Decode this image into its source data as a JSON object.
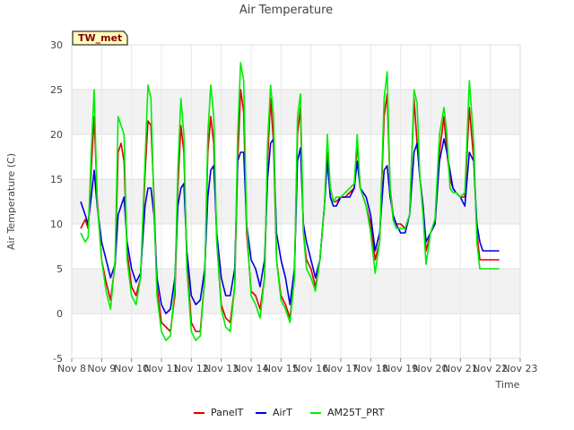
{
  "tag": "TW_met",
  "chart_data": {
    "type": "line",
    "title": "Air Temperature",
    "xlabel": "Time",
    "ylabel": "Air Temperature (C)",
    "ylim": [
      -5,
      30
    ],
    "yticks": [
      -5,
      0,
      5,
      10,
      15,
      20,
      25,
      30
    ],
    "xticks": [
      "Nov 8",
      "Nov 9",
      "Nov 10",
      "Nov 11",
      "Nov 12",
      "Nov 13",
      "Nov 14",
      "Nov 15",
      "Nov 16",
      "Nov 17",
      "Nov 18",
      "Nov 19",
      "Nov 20",
      "Nov 21",
      "Nov 22",
      "Nov 23"
    ],
    "xlim_day": [
      8,
      23
    ],
    "grid": true,
    "legend_position": "bottom-center",
    "x_day": [
      8.3,
      8.45,
      8.55,
      8.65,
      8.75,
      8.85,
      9.0,
      9.15,
      9.3,
      9.45,
      9.55,
      9.65,
      9.75,
      9.85,
      10.0,
      10.15,
      10.3,
      10.45,
      10.55,
      10.65,
      10.75,
      10.85,
      11.0,
      11.15,
      11.3,
      11.45,
      11.55,
      11.65,
      11.75,
      11.85,
      12.0,
      12.15,
      12.3,
      12.45,
      12.55,
      12.65,
      12.75,
      12.85,
      13.0,
      13.15,
      13.3,
      13.45,
      13.55,
      13.65,
      13.75,
      13.85,
      14.0,
      14.15,
      14.3,
      14.45,
      14.55,
      14.65,
      14.75,
      14.85,
      15.0,
      15.15,
      15.3,
      15.45,
      15.55,
      15.65,
      15.75,
      15.85,
      16.0,
      16.15,
      16.3,
      16.45,
      16.55,
      16.65,
      16.75,
      16.85,
      17.0,
      17.15,
      17.3,
      17.45,
      17.55,
      17.65,
      17.75,
      17.85,
      18.0,
      18.15,
      18.3,
      18.45,
      18.55,
      18.65,
      18.75,
      18.85,
      19.0,
      19.15,
      19.3,
      19.45,
      19.55,
      19.65,
      19.75,
      19.85,
      20.0,
      20.15,
      20.3,
      20.45,
      20.55,
      20.65,
      20.75,
      20.85,
      21.0,
      21.15,
      21.3,
      21.45,
      21.55,
      21.65,
      21.75,
      21.85,
      22.0,
      22.15,
      22.3
    ],
    "series": [
      {
        "name": "PanelT",
        "color": "#dd0000",
        "values": [
          9.5,
          10.5,
          9.5,
          16.0,
          22.0,
          13.0,
          6.0,
          3.5,
          1.5,
          5.5,
          18.0,
          19.0,
          17.0,
          7.0,
          3.0,
          2.0,
          4.0,
          15.5,
          21.5,
          21.0,
          13.0,
          3.0,
          -1.0,
          -1.5,
          -2.0,
          2.0,
          14.0,
          21.0,
          18.0,
          6.0,
          -1.0,
          -2.0,
          -2.0,
          4.0,
          18.0,
          22.0,
          19.0,
          8.0,
          1.0,
          -0.5,
          -1.0,
          3.0,
          17.0,
          25.0,
          22.5,
          9.0,
          2.5,
          2.0,
          0.5,
          4.0,
          17.0,
          24.0,
          19.0,
          6.0,
          2.0,
          1.0,
          -0.5,
          4.0,
          20.0,
          23.0,
          9.0,
          6.0,
          5.0,
          3.0,
          6.0,
          12.0,
          18.0,
          14.0,
          12.5,
          12.5,
          13.0,
          13.0,
          13.5,
          14.0,
          19.0,
          14.0,
          13.0,
          12.0,
          10.0,
          6.0,
          8.0,
          22.0,
          24.5,
          14.0,
          11.0,
          10.0,
          10.0,
          9.5,
          11.0,
          24.0,
          19.0,
          15.0,
          12.0,
          7.0,
          9.0,
          10.0,
          18.0,
          22.0,
          18.0,
          15.0,
          14.0,
          13.5,
          13.0,
          13.0,
          23.0,
          17.0,
          9.0,
          6.0,
          6.0,
          6.0,
          6.0,
          6.0,
          6.0
        ]
      },
      {
        "name": "AirT",
        "color": "#0000dd",
        "values": [
          12.5,
          11.0,
          10.0,
          13.0,
          16.0,
          12.0,
          8.0,
          6.0,
          4.0,
          5.5,
          11.0,
          12.0,
          13.0,
          8.0,
          5.0,
          3.5,
          4.5,
          12.0,
          14.0,
          14.0,
          11.0,
          4.0,
          1.0,
          0.0,
          0.5,
          4.0,
          12.0,
          14.0,
          14.5,
          7.0,
          2.0,
          1.0,
          1.5,
          5.0,
          13.0,
          16.0,
          16.5,
          9.0,
          4.0,
          2.0,
          2.0,
          5.0,
          17.0,
          18.0,
          18.0,
          10.0,
          6.0,
          5.0,
          3.0,
          6.0,
          15.0,
          19.0,
          19.5,
          9.0,
          6.0,
          4.0,
          1.0,
          5.0,
          17.0,
          18.5,
          10.0,
          8.0,
          6.0,
          4.0,
          6.0,
          12.0,
          17.0,
          13.0,
          12.0,
          12.0,
          13.0,
          13.0,
          13.0,
          14.0,
          17.0,
          14.0,
          13.5,
          13.0,
          11.0,
          7.0,
          9.0,
          16.0,
          16.5,
          13.0,
          11.0,
          10.0,
          9.0,
          9.0,
          11.0,
          18.0,
          19.0,
          15.0,
          12.0,
          8.0,
          9.0,
          10.0,
          17.0,
          19.5,
          18.0,
          16.0,
          14.0,
          13.5,
          13.0,
          12.0,
          18.0,
          17.0,
          10.0,
          8.0,
          7.0,
          7.0,
          7.0,
          7.0,
          7.0
        ]
      },
      {
        "name": "AM25T_PRT",
        "color": "#00ee00",
        "values": [
          9.0,
          8.0,
          8.5,
          18.0,
          25.0,
          12.5,
          6.0,
          2.5,
          0.5,
          6.0,
          22.0,
          21.0,
          20.0,
          6.0,
          2.0,
          1.0,
          4.0,
          17.0,
          25.5,
          24.0,
          12.0,
          2.0,
          -2.0,
          -3.0,
          -2.5,
          3.0,
          16.0,
          24.0,
          20.0,
          5.0,
          -2.0,
          -3.0,
          -2.5,
          4.0,
          20.0,
          25.5,
          22.0,
          8.0,
          0.5,
          -1.5,
          -2.0,
          3.0,
          20.0,
          28.0,
          26.0,
          10.0,
          2.0,
          1.0,
          -0.5,
          4.0,
          19.0,
          25.5,
          22.0,
          6.0,
          1.5,
          0.5,
          -1.0,
          4.0,
          22.0,
          24.5,
          9.0,
          5.0,
          4.0,
          2.5,
          6.0,
          12.0,
          20.0,
          14.0,
          12.5,
          13.0,
          13.0,
          13.5,
          14.0,
          14.5,
          20.0,
          14.0,
          13.0,
          12.0,
          9.0,
          4.5,
          8.0,
          24.0,
          27.0,
          14.0,
          10.5,
          9.5,
          9.5,
          9.5,
          11.0,
          25.0,
          23.5,
          15.0,
          11.0,
          5.5,
          9.0,
          10.5,
          20.0,
          23.0,
          20.0,
          14.0,
          13.5,
          13.5,
          13.0,
          13.5,
          26.0,
          19.0,
          8.0,
          5.0,
          5.0,
          5.0,
          5.0,
          5.0,
          5.0
        ]
      }
    ]
  }
}
